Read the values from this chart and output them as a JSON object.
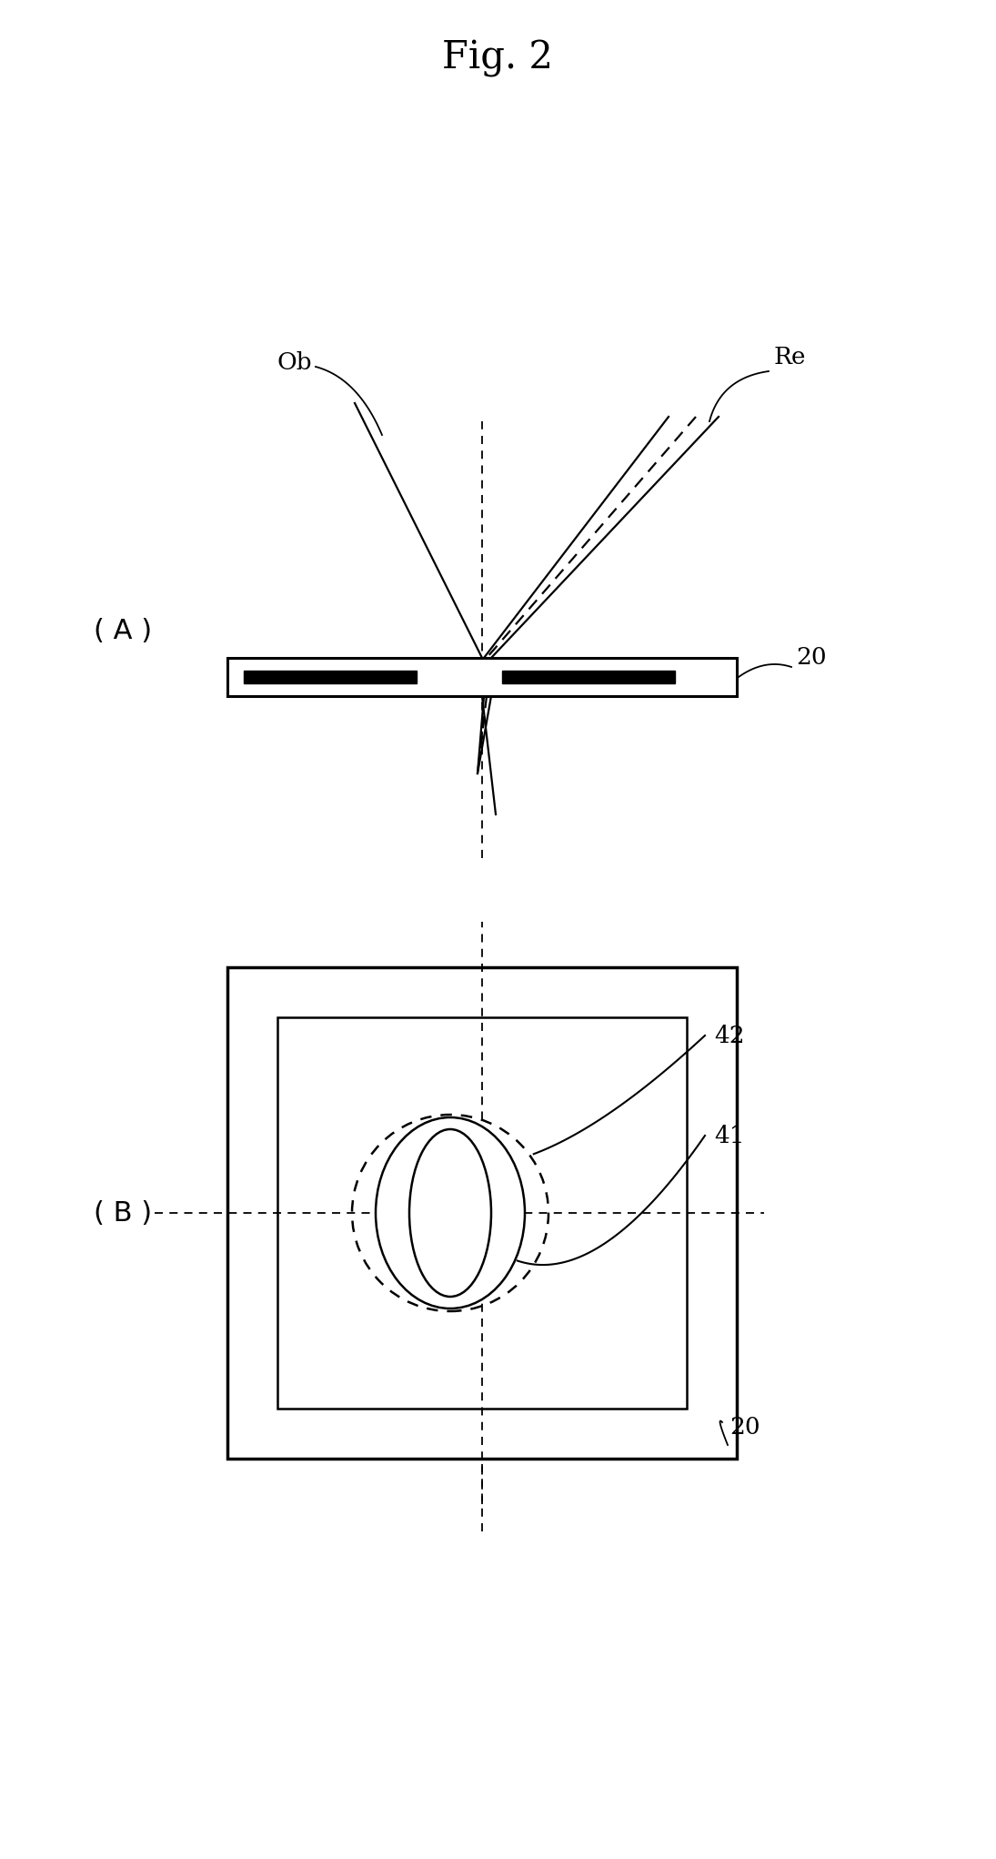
{
  "title": "Fig. 2",
  "bg_color": "#ffffff",
  "fig_width": 10.95,
  "fig_height": 20.43,
  "dpi": 100,
  "panel_A_label": "( A )",
  "panel_B_label": "( B )",
  "label_ob": "Ob",
  "label_re": "Re",
  "label_20_A": "20",
  "label_20_B": "20",
  "label_41": "41",
  "label_42": "42"
}
